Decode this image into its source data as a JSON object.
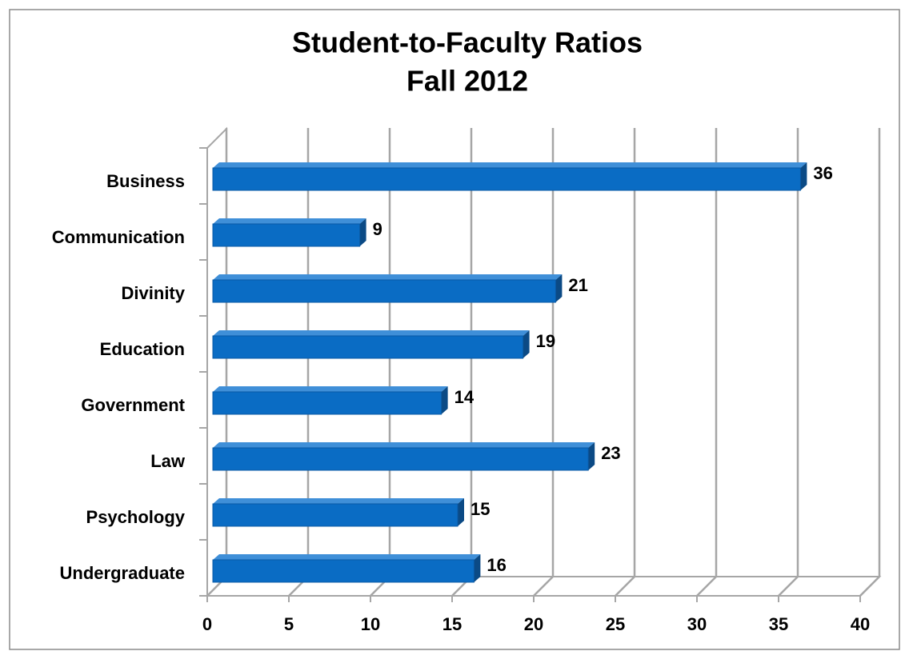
{
  "chart_data": {
    "type": "bar",
    "orientation": "horizontal",
    "title": "Student-to-Faculty Ratios",
    "subtitle": "Fall 2012",
    "categories": [
      "Business",
      "Communication",
      "Divinity",
      "Education",
      "Government",
      "Law",
      "Psychology",
      "Undergraduate"
    ],
    "values": [
      36,
      9,
      21,
      19,
      14,
      23,
      15,
      16
    ],
    "color": "#0a6cc4",
    "xlim": [
      0,
      40
    ],
    "xticks": [
      0,
      5,
      10,
      15,
      20,
      25,
      30,
      35,
      40
    ],
    "grid": true
  }
}
